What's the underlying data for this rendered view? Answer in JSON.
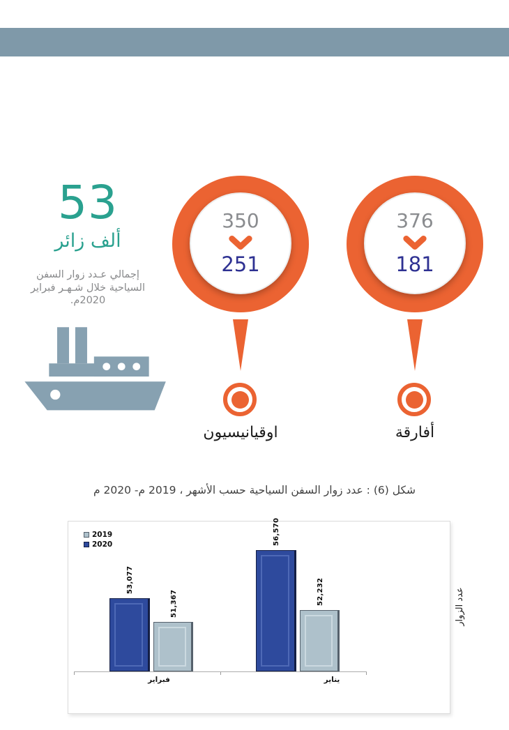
{
  "summary": {
    "value": "53",
    "unit": "ألف زائر",
    "description": "إجمالي عـدد زوار السفن السياحية خلال شـهـر فبراير 2020م."
  },
  "nationalities": [
    {
      "label": "اوقيانيسيون",
      "previous": "350",
      "current": "251"
    },
    {
      "label": "أفارقة",
      "previous": "376",
      "current": "181"
    }
  ],
  "figure_caption": "شكل (6) : عدد زوار السفن السياحية حسب الأشهر ، 2019 م- 2020 م",
  "chart_data": {
    "type": "bar",
    "title": "شكل (6) : عدد زوار السفن السياحية حسب الأشهر ، 2019 م- 2020 م",
    "categories": [
      "فبراير",
      "يناير"
    ],
    "series": [
      {
        "name": "2019",
        "values": [
          51367,
          52232
        ],
        "labels": [
          "51,367",
          "52,232"
        ],
        "color": "#AEC1CB",
        "border": "#55616C",
        "bevel": "#CBD9E0"
      },
      {
        "name": "2020",
        "values": [
          53077,
          56570
        ],
        "labels": [
          "53,077",
          "56,570"
        ],
        "color": "#2E4A9D",
        "border": "#141F45",
        "bevel": "#4E69B6"
      }
    ],
    "ylabel": "عدد الزوار",
    "xlabel": "",
    "y_min": 47800,
    "y_max": 58700,
    "grid": false,
    "legend_position": "top-left",
    "legend": [
      "2019",
      "2020"
    ]
  },
  "colors": {
    "header_band": "#7F99A9",
    "teal": "#2AA18F",
    "orange": "#EB6332",
    "navy": "#2E3192",
    "gray_number": "#8A8C8F",
    "body_text": "#88898B",
    "ship": "#87A1B1"
  }
}
